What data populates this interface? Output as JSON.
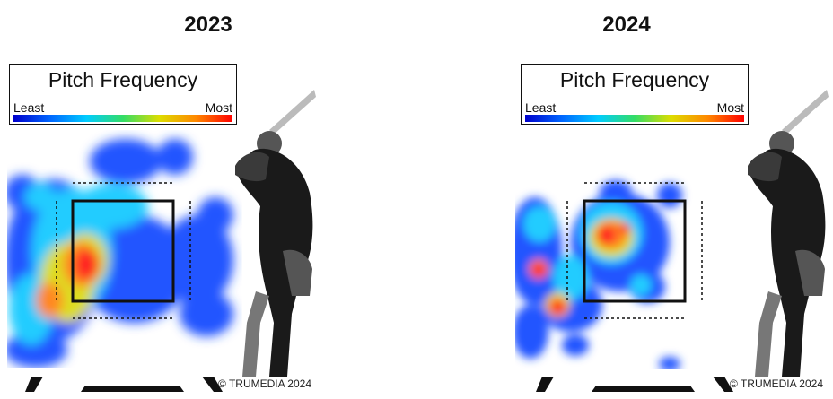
{
  "chart_data": [
    {
      "type": "heatmap",
      "title": "2023",
      "legend": {
        "title": "Pitch Frequency",
        "low_label": "Least",
        "high_label": "Most"
      },
      "colors": {
        "low": "#0000cc",
        "mid": "#33dd66",
        "high": "#ff0000"
      },
      "hotspot": "low and inside, left edge of the strike zone"
    },
    {
      "type": "heatmap",
      "title": "2024",
      "legend": {
        "title": "Pitch Frequency",
        "low_label": "Least",
        "high_label": "Most"
      },
      "colors": {
        "low": "#0000cc",
        "mid": "#33dd66",
        "high": "#ff0000"
      },
      "hotspot": "middle of the strike zone, upper half"
    }
  ],
  "footer": {
    "copyright": "© TRUMEDIA 2024"
  }
}
